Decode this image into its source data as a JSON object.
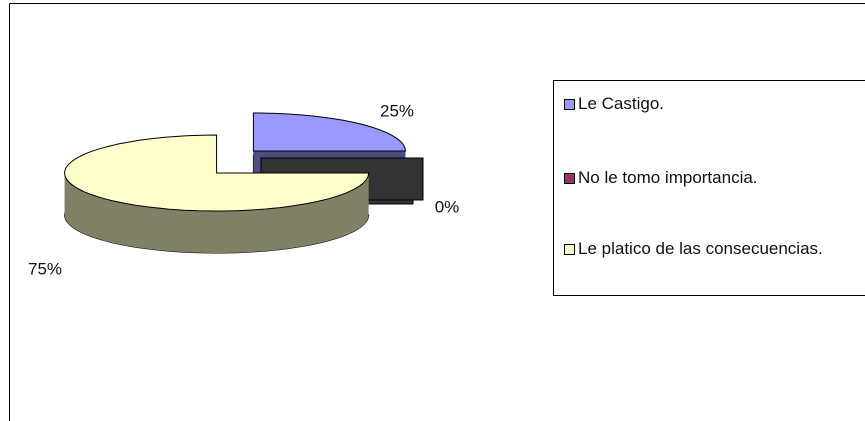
{
  "chart_data": {
    "type": "pie",
    "categories": [
      "Le Castigo.",
      "No le tomo importancia.",
      "Le platico de las consecuencias."
    ],
    "values": [
      25,
      0,
      75
    ],
    "value_labels": [
      "25%",
      "0%",
      "75%"
    ],
    "colors": [
      "#9999ff",
      "#993366",
      "#ffffcc"
    ],
    "legend": "right"
  }
}
